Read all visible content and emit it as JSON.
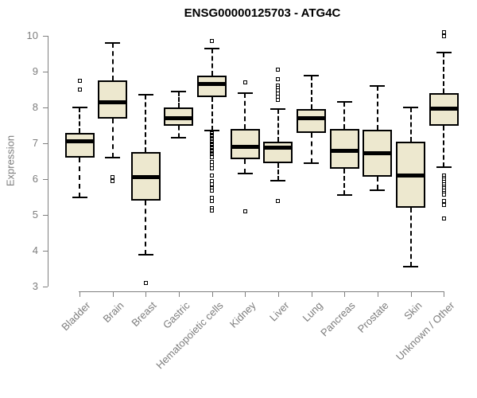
{
  "title": "ENSG00000125703 - ATG4C",
  "chart_data": {
    "type": "boxplot",
    "title": "ENSG00000125703 - ATG4C",
    "xlabel": "",
    "ylabel": "Expression",
    "ylim": [
      3,
      10
    ],
    "yticks": [
      3,
      4,
      5,
      6,
      7,
      8,
      9,
      10
    ],
    "grid": false,
    "legend": false,
    "colors": {
      "box_fill": "#ede8cf",
      "box_border": "#000000",
      "median": "#000000",
      "whisker": "#000000",
      "axis": "#808080",
      "tick_label": "#7d7d7d",
      "title": "#000000"
    },
    "categories": [
      "Bladder",
      "Brain",
      "Breast",
      "Gastric",
      "Hematopoietic cells",
      "Kidney",
      "Liver",
      "Lung",
      "Pancreas",
      "Prostate",
      "Skin",
      "Unknown / Other"
    ],
    "series": [
      {
        "name": "Bladder",
        "whisker_low": 5.5,
        "q1": 6.6,
        "median": 7.05,
        "q3": 7.3,
        "whisker_high": 8.0,
        "outliers": [
          8.75,
          8.5
        ]
      },
      {
        "name": "Brain",
        "whisker_low": 6.6,
        "q1": 7.7,
        "median": 8.15,
        "q3": 8.75,
        "whisker_high": 9.8,
        "outliers": [
          6.05,
          5.95
        ]
      },
      {
        "name": "Breast",
        "whisker_low": 3.9,
        "q1": 5.4,
        "median": 6.05,
        "q3": 6.75,
        "whisker_high": 8.35,
        "outliers": [
          3.1
        ]
      },
      {
        "name": "Gastric",
        "whisker_low": 7.15,
        "q1": 7.5,
        "median": 7.7,
        "q3": 8.0,
        "whisker_high": 8.45,
        "outliers": []
      },
      {
        "name": "Hematopoietic cells",
        "whisker_low": 7.35,
        "q1": 8.3,
        "median": 8.65,
        "q3": 8.9,
        "whisker_high": 9.65,
        "outliers": [
          9.85,
          7.27,
          7.24,
          7.21,
          7.18,
          7.15,
          7.12,
          7.09,
          7.06,
          7.03,
          7.0,
          6.97,
          6.94,
          6.91,
          6.88,
          6.85,
          6.82,
          6.79,
          6.76,
          6.73,
          6.7,
          6.67,
          6.64,
          6.61,
          6.48,
          6.4,
          6.3,
          6.1,
          5.95,
          5.85,
          5.75,
          5.68,
          5.48,
          5.38,
          5.2,
          5.12
        ]
      },
      {
        "name": "Kidney",
        "whisker_low": 6.15,
        "q1": 6.55,
        "median": 6.9,
        "q3": 7.4,
        "whisker_high": 8.4,
        "outliers": [
          8.7,
          5.1
        ]
      },
      {
        "name": "Liver",
        "whisker_low": 5.95,
        "q1": 6.45,
        "median": 6.88,
        "q3": 7.05,
        "whisker_high": 7.95,
        "outliers": [
          9.05,
          8.8,
          8.62,
          8.55,
          8.48,
          8.38,
          8.3,
          8.22,
          5.4
        ]
      },
      {
        "name": "Lung",
        "whisker_low": 6.45,
        "q1": 7.3,
        "median": 7.7,
        "q3": 7.95,
        "whisker_high": 8.9,
        "outliers": []
      },
      {
        "name": "Pancreas",
        "whisker_low": 5.55,
        "q1": 6.3,
        "median": 6.78,
        "q3": 7.4,
        "whisker_high": 8.15,
        "outliers": []
      },
      {
        "name": "Prostate",
        "whisker_low": 5.7,
        "q1": 6.07,
        "median": 6.72,
        "q3": 7.38,
        "whisker_high": 8.6,
        "outliers": []
      },
      {
        "name": "Skin",
        "whisker_low": 3.55,
        "q1": 5.2,
        "median": 6.1,
        "q3": 7.05,
        "whisker_high": 8.0,
        "outliers": []
      },
      {
        "name": "Unknown / Other",
        "whisker_low": 6.33,
        "q1": 7.5,
        "median": 7.97,
        "q3": 8.4,
        "whisker_high": 9.53,
        "outliers": [
          10.1,
          10.0,
          6.1,
          6.04,
          5.98,
          5.92,
          5.86,
          5.8,
          5.74,
          5.68,
          5.62,
          5.56,
          5.4,
          5.28,
          4.9
        ]
      }
    ]
  }
}
